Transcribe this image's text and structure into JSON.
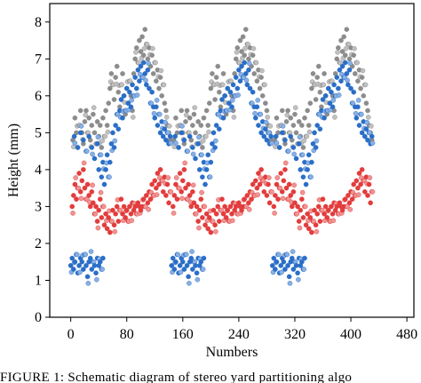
{
  "caption": "FIGURE 1: Schematic diagram of stereo yard partitioning algo",
  "chart_data": {
    "type": "scatter",
    "title": "",
    "xlabel": "Numbers",
    "ylabel": "Height (mm)",
    "xlim": [
      -30,
      490
    ],
    "ylim": [
      0,
      8.5
    ],
    "xticks": [
      0,
      80,
      160,
      240,
      320,
      400,
      480
    ],
    "yticks": [
      0,
      1,
      2,
      3,
      4,
      5,
      6,
      7,
      8
    ],
    "grid": false,
    "legend": "none",
    "period": 144,
    "series": [
      {
        "color": "#8c8c8c",
        "points": [
          [
            3,
            4.8
          ],
          [
            6,
            5.4
          ],
          [
            8,
            5.0
          ],
          [
            10,
            4.6
          ],
          [
            12,
            5.2
          ],
          [
            14,
            5.6
          ],
          [
            16,
            5.0
          ],
          [
            18,
            4.7
          ],
          [
            20,
            5.3
          ],
          [
            22,
            5.6
          ],
          [
            24,
            5.0
          ],
          [
            26,
            5.4
          ],
          [
            28,
            4.8
          ],
          [
            30,
            5.2
          ],
          [
            32,
            5.5
          ],
          [
            34,
            5.0
          ],
          [
            36,
            4.7
          ],
          [
            38,
            5.3
          ],
          [
            40,
            4.9
          ],
          [
            42,
            5.2
          ],
          [
            44,
            4.6
          ],
          [
            46,
            5.4
          ],
          [
            48,
            4.9
          ],
          [
            50,
            5.6
          ],
          [
            52,
            5.2
          ],
          [
            54,
            5.8
          ],
          [
            56,
            6.2
          ],
          [
            58,
            6.6
          ],
          [
            60,
            6.3
          ],
          [
            62,
            5.9
          ],
          [
            64,
            6.5
          ],
          [
            66,
            6.8
          ],
          [
            68,
            6.1
          ],
          [
            70,
            5.7
          ],
          [
            72,
            6.3
          ],
          [
            74,
            6.6
          ],
          [
            76,
            6.0
          ],
          [
            78,
            5.5
          ],
          [
            80,
            6.2
          ],
          [
            82,
            5.8
          ],
          [
            84,
            6.4
          ],
          [
            86,
            6.0
          ],
          [
            88,
            5.6
          ],
          [
            90,
            6.6
          ],
          [
            92,
            7.0
          ],
          [
            94,
            7.3
          ],
          [
            96,
            6.9
          ],
          [
            98,
            7.5
          ],
          [
            100,
            7.2
          ],
          [
            102,
            7.6
          ],
          [
            104,
            7.1
          ],
          [
            106,
            7.8
          ],
          [
            108,
            7.4
          ],
          [
            110,
            7.0
          ],
          [
            112,
            7.3
          ],
          [
            114,
            6.8
          ],
          [
            116,
            7.1
          ],
          [
            118,
            6.6
          ],
          [
            120,
            6.9
          ],
          [
            122,
            6.4
          ],
          [
            124,
            6.7
          ],
          [
            126,
            6.2
          ],
          [
            128,
            6.5
          ],
          [
            130,
            6.0
          ],
          [
            132,
            6.3
          ],
          [
            134,
            5.8
          ],
          [
            136,
            5.6
          ],
          [
            138,
            5.2
          ],
          [
            140,
            5.0
          ],
          [
            142,
            4.8
          ]
        ]
      },
      {
        "color": "#2a6ec8",
        "points": [
          [
            0,
            1.4
          ],
          [
            2,
            1.6
          ],
          [
            4,
            1.3
          ],
          [
            6,
            1.5
          ],
          [
            8,
            1.7
          ],
          [
            10,
            1.2
          ],
          [
            12,
            1.4
          ],
          [
            14,
            1.6
          ],
          [
            16,
            1.5
          ],
          [
            18,
            1.3
          ],
          [
            20,
            1.7
          ],
          [
            22,
            1.4
          ],
          [
            24,
            1.1
          ],
          [
            26,
            1.5
          ],
          [
            28,
            1.6
          ],
          [
            30,
            1.3
          ],
          [
            32,
            1.5
          ],
          [
            34,
            1.4
          ],
          [
            36,
            1.2
          ],
          [
            38,
            1.6
          ],
          [
            40,
            1.4
          ],
          [
            42,
            1.5
          ],
          [
            44,
            1.3
          ],
          [
            46,
            1.6
          ],
          [
            5,
            4.9
          ],
          [
            10,
            4.6
          ],
          [
            14,
            5.0
          ],
          [
            18,
            4.8
          ],
          [
            22,
            4.5
          ],
          [
            26,
            4.9
          ],
          [
            30,
            4.6
          ],
          [
            34,
            4.3
          ],
          [
            38,
            4.7
          ],
          [
            40,
            4.0
          ],
          [
            42,
            4.4
          ],
          [
            44,
            3.8
          ],
          [
            46,
            4.2
          ],
          [
            48,
            3.6
          ],
          [
            50,
            4.0
          ],
          [
            52,
            4.4
          ],
          [
            54,
            3.8
          ],
          [
            56,
            4.2
          ],
          [
            58,
            4.7
          ],
          [
            60,
            5.0
          ],
          [
            62,
            4.6
          ],
          [
            64,
            5.2
          ],
          [
            66,
            5.5
          ],
          [
            68,
            5.1
          ],
          [
            70,
            5.6
          ],
          [
            72,
            5.9
          ],
          [
            74,
            5.4
          ],
          [
            76,
            6.0
          ],
          [
            78,
            5.6
          ],
          [
            80,
            6.2
          ],
          [
            82,
            5.8
          ],
          [
            84,
            6.1
          ],
          [
            86,
            5.7
          ],
          [
            88,
            6.3
          ],
          [
            90,
            6.0
          ],
          [
            92,
            6.5
          ],
          [
            94,
            6.2
          ],
          [
            96,
            6.7
          ],
          [
            98,
            6.4
          ],
          [
            100,
            6.8
          ],
          [
            102,
            6.5
          ],
          [
            104,
            6.9
          ],
          [
            106,
            6.6
          ],
          [
            108,
            6.3
          ],
          [
            110,
            6.7
          ],
          [
            112,
            6.2
          ],
          [
            114,
            5.8
          ],
          [
            116,
            6.1
          ],
          [
            118,
            5.7
          ],
          [
            120,
            5.4
          ],
          [
            122,
            5.7
          ],
          [
            124,
            5.2
          ],
          [
            126,
            5.5
          ],
          [
            128,
            5.0
          ],
          [
            130,
            5.3
          ],
          [
            132,
            4.9
          ],
          [
            134,
            5.1
          ],
          [
            136,
            4.8
          ],
          [
            138,
            5.0
          ],
          [
            140,
            4.7
          ],
          [
            142,
            4.9
          ]
        ]
      },
      {
        "color": "#e23c3c",
        "points": [
          [
            2,
            3.0
          ],
          [
            4,
            3.3
          ],
          [
            6,
            3.6
          ],
          [
            8,
            3.2
          ],
          [
            10,
            3.5
          ],
          [
            12,
            3.9
          ],
          [
            14,
            3.4
          ],
          [
            16,
            3.7
          ],
          [
            18,
            4.0
          ],
          [
            20,
            3.5
          ],
          [
            22,
            3.2
          ],
          [
            24,
            3.6
          ],
          [
            26,
            3.3
          ],
          [
            28,
            3.0
          ],
          [
            30,
            3.4
          ],
          [
            32,
            3.1
          ],
          [
            34,
            2.8
          ],
          [
            36,
            3.0
          ],
          [
            38,
            2.6
          ],
          [
            40,
            2.9
          ],
          [
            42,
            3.2
          ],
          [
            44,
            2.7
          ],
          [
            46,
            3.0
          ],
          [
            48,
            2.5
          ],
          [
            50,
            2.8
          ],
          [
            52,
            2.4
          ],
          [
            54,
            2.7
          ],
          [
            56,
            2.3
          ],
          [
            58,
            2.6
          ],
          [
            60,
            2.9
          ],
          [
            62,
            2.5
          ],
          [
            64,
            2.8
          ],
          [
            66,
            3.0
          ],
          [
            68,
            2.6
          ],
          [
            70,
            2.9
          ],
          [
            72,
            3.2
          ],
          [
            74,
            2.8
          ],
          [
            76,
            3.0
          ],
          [
            78,
            2.7
          ],
          [
            80,
            2.9
          ],
          [
            82,
            2.6
          ],
          [
            84,
            3.0
          ],
          [
            86,
            2.8
          ],
          [
            88,
            3.1
          ],
          [
            90,
            2.9
          ],
          [
            92,
            3.0
          ],
          [
            94,
            2.8
          ],
          [
            96,
            3.1
          ],
          [
            98,
            3.0
          ],
          [
            100,
            2.9
          ],
          [
            102,
            3.0
          ],
          [
            104,
            3.2
          ],
          [
            106,
            3.0
          ],
          [
            108,
            3.3
          ],
          [
            110,
            3.1
          ],
          [
            112,
            3.4
          ],
          [
            114,
            3.2
          ],
          [
            116,
            3.6
          ],
          [
            118,
            3.3
          ],
          [
            120,
            3.7
          ],
          [
            122,
            3.5
          ],
          [
            124,
            3.9
          ],
          [
            126,
            3.6
          ],
          [
            128,
            4.0
          ],
          [
            130,
            3.7
          ],
          [
            132,
            3.4
          ],
          [
            134,
            3.8
          ],
          [
            136,
            3.3
          ],
          [
            138,
            3.6
          ],
          [
            140,
            3.1
          ],
          [
            142,
            3.4
          ]
        ]
      }
    ]
  }
}
